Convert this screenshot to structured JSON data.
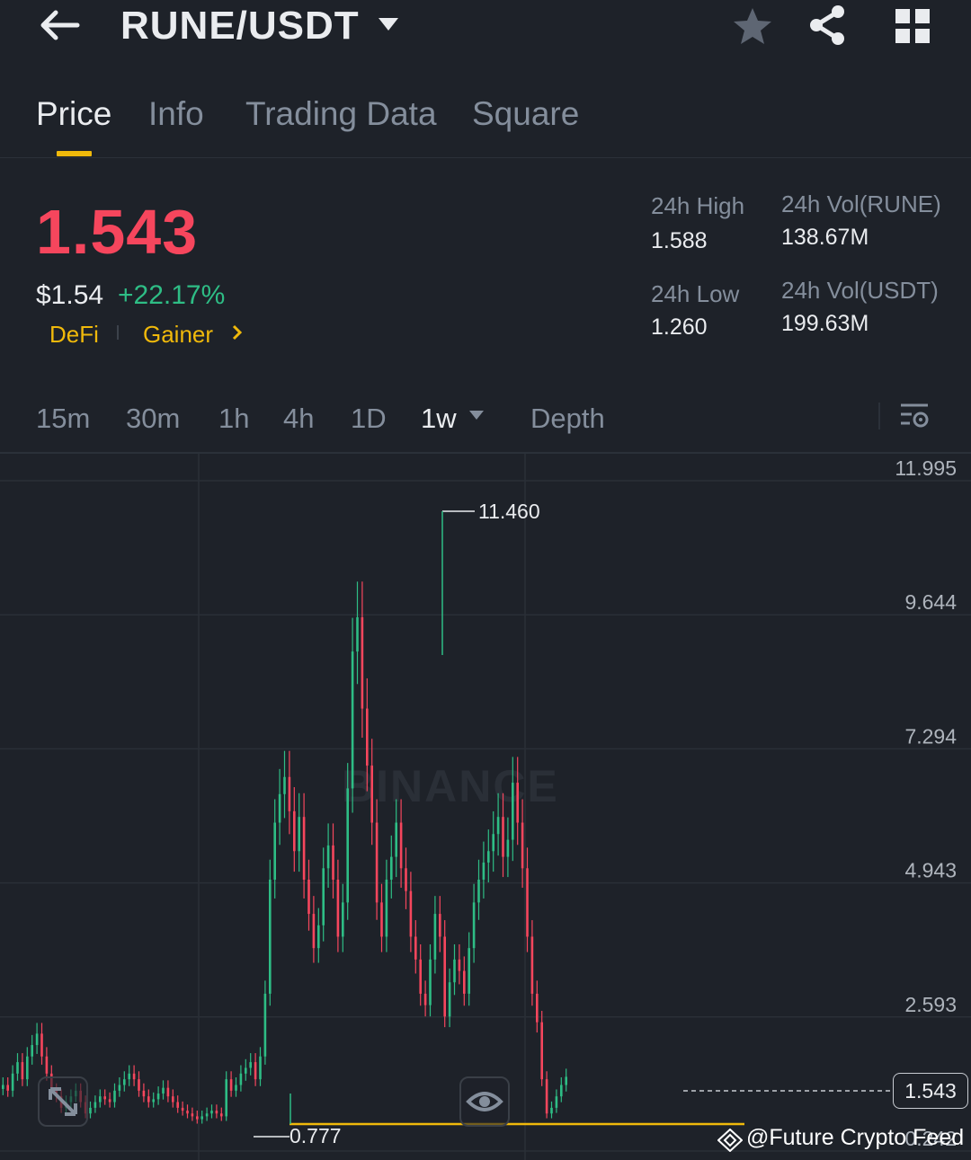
{
  "header": {
    "pair": "RUNE/USDT",
    "icons": [
      "back-arrow-icon",
      "chevron-down-icon",
      "star-icon",
      "share-icon",
      "grid-icon"
    ]
  },
  "tabs": [
    {
      "label": "Price",
      "active": true
    },
    {
      "label": "Info",
      "active": false
    },
    {
      "label": "Trading Data",
      "active": false
    },
    {
      "label": "Square",
      "active": false
    }
  ],
  "ticker": {
    "last_price": "1.543",
    "usd_price": "$1.54",
    "change_pct": "+22.17%",
    "tags": [
      "DeFi",
      "Gainer"
    ],
    "stats": [
      {
        "label": "24h High",
        "value": "1.588"
      },
      {
        "label": "24h Vol(RUNE)",
        "value": "138.67M"
      },
      {
        "label": "24h Low",
        "value": "1.260"
      },
      {
        "label": "24h Vol(USDT)",
        "value": "199.63M"
      }
    ]
  },
  "intervals": [
    {
      "label": "15m",
      "active": false
    },
    {
      "label": "30m",
      "active": false
    },
    {
      "label": "1h",
      "active": false
    },
    {
      "label": "4h",
      "active": false
    },
    {
      "label": "1D",
      "active": false
    },
    {
      "label": "1w",
      "active": true
    },
    {
      "label": "Depth",
      "active": false
    }
  ],
  "chart": {
    "watermark": "BINANCE",
    "y_labels": [
      "11.995",
      "9.644",
      "7.294",
      "4.943",
      "2.593",
      "0.242"
    ],
    "high_annotation": "11.460",
    "low_annotation": "0.777",
    "current_price_tag": "1.543",
    "colors": {
      "up": "#2ebd85",
      "down": "#f6465d",
      "accent": "#f0b90b"
    }
  },
  "chart_data": {
    "type": "candlestick",
    "interval": "1w",
    "y_ticks": [
      11.995,
      9.644,
      7.294,
      4.943,
      2.593,
      0.242
    ],
    "ylim": [
      0.242,
      11.995
    ],
    "annotations": [
      {
        "label": "11.460",
        "value": 11.46,
        "kind": "high"
      },
      {
        "label": "0.777",
        "value": 0.777,
        "kind": "low"
      }
    ],
    "current_price": 1.543,
    "support_line": 0.85,
    "grid": true,
    "closes": [
      1.4,
      1.3,
      1.6,
      1.8,
      1.5,
      1.9,
      2.1,
      2.3,
      1.9,
      1.6,
      1.3,
      1.2,
      1.0,
      1.1,
      1.2,
      1.3,
      1.1,
      0.9,
      1.0,
      1.1,
      1.2,
      1.15,
      1.1,
      1.3,
      1.4,
      1.5,
      1.6,
      1.5,
      1.3,
      1.2,
      1.1,
      1.15,
      1.25,
      1.35,
      1.2,
      1.1,
      1.0,
      0.95,
      0.9,
      0.85,
      0.8,
      0.85,
      0.9,
      0.95,
      0.9,
      0.85,
      1.5,
      1.3,
      1.4,
      1.6,
      1.7,
      1.8,
      1.5,
      1.9,
      3.0,
      5.0,
      6.0,
      6.5,
      6.8,
      6.2,
      5.5,
      6.1,
      5.0,
      4.4,
      3.8,
      4.2,
      5.2,
      5.6,
      5.0,
      4.0,
      4.6,
      6.6,
      9.0,
      9.6,
      8.0,
      7.0,
      6.0,
      4.6,
      4.0,
      5.0,
      5.4,
      6.0,
      5.2,
      4.8,
      4.0,
      3.6,
      3.0,
      2.8,
      3.6,
      4.4,
      4.0,
      2.6,
      3.2,
      3.6,
      3.4,
      3.0,
      3.8,
      4.6,
      5.0,
      5.3,
      5.5,
      5.8,
      6.1,
      5.4,
      5.7,
      6.7,
      6.0,
      5.2,
      4.0,
      3.0,
      2.5,
      1.5,
      0.9,
      1.0,
      1.2,
      1.4,
      1.543
    ]
  }
}
